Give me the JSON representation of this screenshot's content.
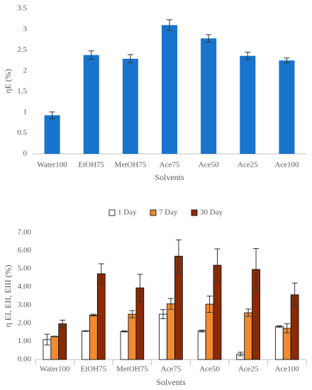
{
  "chart_data": [
    {
      "type": "bar",
      "x_label": "Solvents",
      "y_label": "ηE (%)",
      "categories": [
        "Water100",
        "EtOH75",
        "MetOH75",
        "Ace75",
        "Ace50",
        "Ace25",
        "Ace100"
      ],
      "values": [
        0.93,
        2.38,
        2.29,
        3.1,
        2.78,
        2.36,
        2.25
      ],
      "errors": [
        0.08,
        0.1,
        0.1,
        0.13,
        0.09,
        0.09,
        0.06
      ],
      "color": "#1874cd",
      "ylim": [
        0,
        3.5
      ],
      "yticks": [
        0,
        0.5,
        1,
        1.5,
        2,
        2.5,
        3,
        3.5
      ],
      "grid": false
    },
    {
      "type": "bar",
      "x_label": "Solvents",
      "y_label": "η EI, EII, EIII (%)",
      "categories": [
        "Water100",
        "EtOH75",
        "MetOH75",
        "Ace75",
        "Ace50",
        "Ace25",
        "Ace100"
      ],
      "series": [
        {
          "name": "1 Day",
          "color": "#ffffff",
          "values": [
            1.1,
            1.57,
            1.55,
            2.5,
            1.57,
            0.3,
            1.82
          ],
          "errors": [
            0.3,
            0.02,
            0.03,
            0.25,
            0.05,
            0.1,
            0.05
          ]
        },
        {
          "name": "7 Day",
          "color": "#f28b30",
          "values": [
            1.27,
            2.45,
            2.5,
            3.07,
            3.05,
            2.58,
            1.72
          ],
          "errors": [
            0.02,
            0.05,
            0.2,
            0.3,
            0.45,
            0.2,
            0.25
          ]
        },
        {
          "name": "30 Day",
          "color": "#8b2a05",
          "values": [
            1.97,
            4.73,
            3.95,
            5.7,
            5.2,
            4.97,
            3.57
          ],
          "errors": [
            0.2,
            0.55,
            0.75,
            0.9,
            0.9,
            1.15,
            0.65
          ]
        }
      ],
      "ylim": [
        0,
        7
      ],
      "yticks": [
        {
          "value": 0,
          "label": "0.00"
        },
        {
          "value": 1,
          "label": "1.00"
        },
        {
          "value": 2,
          "label": "2.00"
        },
        {
          "value": 3,
          "label": "3.00"
        },
        {
          "value": 4,
          "label": "4.00"
        },
        {
          "value": 5,
          "label": "5.00"
        },
        {
          "value": 6,
          "label": "6.00"
        },
        {
          "value": 7,
          "label": "7.00"
        }
      ],
      "grid": false,
      "legend": "top"
    }
  ]
}
